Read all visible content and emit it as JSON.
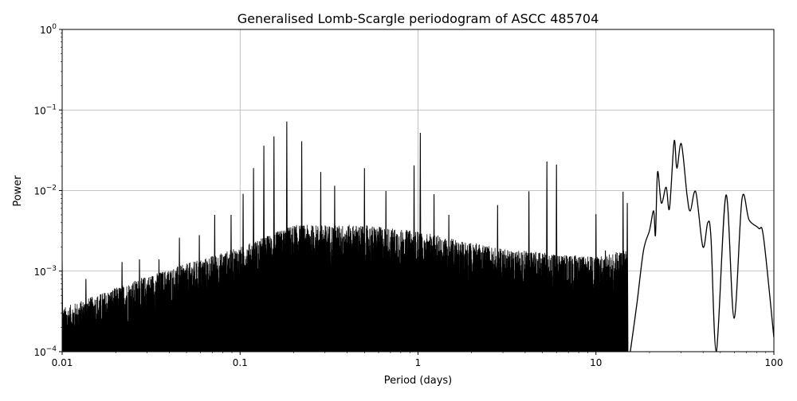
{
  "chart_data": {
    "type": "line",
    "title": "Generalised Lomb-Scargle periodogram of ASCC 485704",
    "xlabel": "Period (days)",
    "ylabel": "Power",
    "xscale": "log",
    "yscale": "log",
    "xlim": [
      0.01,
      100
    ],
    "ylim": [
      0.0001,
      1
    ],
    "grid": true,
    "line_color": "#000000",
    "grid_color": "#b0b0b0",
    "x_ticks": [
      {
        "value": 0.01,
        "label": "0.01"
      },
      {
        "value": 0.1,
        "label": "0.1"
      },
      {
        "value": 1,
        "label": "1"
      },
      {
        "value": 10,
        "label": "10"
      },
      {
        "value": 100,
        "label": "100"
      }
    ],
    "y_ticks": [
      {
        "value": 0.0001,
        "base": "10",
        "exp": "−4"
      },
      {
        "value": 0.001,
        "base": "10",
        "exp": "−3"
      },
      {
        "value": 0.01,
        "base": "10",
        "exp": "−2"
      },
      {
        "value": 0.1,
        "base": "10",
        "exp": "−1"
      },
      {
        "value": 1,
        "base": "10",
        "exp": "0"
      }
    ],
    "noise_envelope": [
      [
        0.01,
        0.00028
      ],
      [
        0.03,
        0.0007
      ],
      [
        0.1,
        0.0016
      ],
      [
        0.2,
        0.003
      ],
      [
        0.5,
        0.003
      ],
      [
        1,
        0.0025
      ],
      [
        3,
        0.0015
      ],
      [
        10,
        0.0012
      ],
      [
        15,
        0.0015
      ]
    ],
    "peaks": [
      [
        0.01,
        0.0013
      ],
      [
        0.0136,
        0.0008
      ],
      [
        0.0217,
        0.0013
      ],
      [
        0.0272,
        0.0014
      ],
      [
        0.035,
        0.0014
      ],
      [
        0.0456,
        0.0026
      ],
      [
        0.059,
        0.0028
      ],
      [
        0.072,
        0.005
      ],
      [
        0.089,
        0.005
      ],
      [
        0.104,
        0.0091
      ],
      [
        0.119,
        0.019
      ],
      [
        0.136,
        0.036
      ],
      [
        0.155,
        0.047
      ],
      [
        0.183,
        0.072
      ],
      [
        0.222,
        0.041
      ],
      [
        0.284,
        0.017
      ],
      [
        0.34,
        0.0115
      ],
      [
        0.5,
        0.019
      ],
      [
        0.66,
        0.0099
      ],
      [
        0.95,
        0.0205
      ],
      [
        1.03,
        0.052
      ],
      [
        1.23,
        0.009
      ],
      [
        1.49,
        0.005
      ],
      [
        2.8,
        0.0066
      ],
      [
        4.2,
        0.0098
      ],
      [
        5.3,
        0.023
      ],
      [
        6.0,
        0.021
      ],
      [
        10.0,
        0.0051
      ],
      [
        11.3,
        0.0018
      ],
      [
        14.2,
        0.0097
      ],
      [
        15.0,
        0.007
      ]
    ],
    "smooth_curve": [
      [
        15.6,
        0.0001
      ],
      [
        17.0,
        0.0004
      ],
      [
        18.5,
        0.0018
      ],
      [
        20.0,
        0.0032
      ],
      [
        21.1,
        0.0056
      ],
      [
        21.6,
        0.0028
      ],
      [
        22.2,
        0.017
      ],
      [
        23.3,
        0.007
      ],
      [
        24.8,
        0.011
      ],
      [
        25.9,
        0.006
      ],
      [
        27.5,
        0.041
      ],
      [
        28.5,
        0.019
      ],
      [
        30.2,
        0.038
      ],
      [
        32.5,
        0.0088
      ],
      [
        33.9,
        0.0056
      ],
      [
        36.4,
        0.0096
      ],
      [
        39.9,
        0.002
      ],
      [
        42.5,
        0.004
      ],
      [
        44.3,
        0.0026
      ],
      [
        47.5,
        0.0001
      ],
      [
        53.8,
        0.0088
      ],
      [
        59.7,
        0.00026
      ],
      [
        66.2,
        0.0079
      ],
      [
        72.6,
        0.0043
      ],
      [
        82.2,
        0.0034
      ],
      [
        87.5,
        0.0026
      ],
      [
        100,
        0.00015
      ]
    ]
  }
}
